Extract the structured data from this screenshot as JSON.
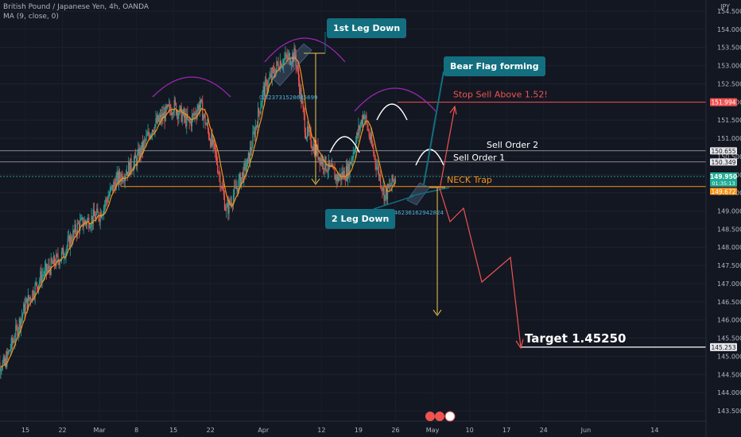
{
  "header": {
    "title": "British Pound / Japanese Yen, 4h, OANDA",
    "ma_label": "MA (9, close, 0)",
    "currency": "JPY"
  },
  "colors": {
    "background": "#131722",
    "bull": "#26a69a",
    "bear": "#ef5350",
    "ma": "#f7931a",
    "annotation_box": "#136f7f",
    "arc": "#9c27b0",
    "stop_line": "#ef5350",
    "neck_line": "#f7931a",
    "target_line": "#ffffff",
    "current_price_label": "#22ab94"
  },
  "chart_data": {
    "type": "candlestick",
    "title": "British Pound / Japanese Yen, 4h, OANDA",
    "ylim": [
      143.3,
      154.75
    ],
    "y_ticks": [
      "143.500",
      "144.000",
      "144.500",
      "145.000",
      "145.500",
      "146.000",
      "146.500",
      "147.000",
      "147.500",
      "148.000",
      "148.500",
      "149.000",
      "149.500",
      "150.000",
      "150.500",
      "151.000",
      "151.500",
      "152.000",
      "152.500",
      "153.000",
      "153.500",
      "154.000",
      "154.500"
    ],
    "x_ticks": [
      "15",
      "22",
      "Mar",
      "8",
      "15",
      "22",
      "Apr",
      "12",
      "19",
      "26",
      "May",
      "10",
      "17",
      "24",
      "Jun",
      "14"
    ],
    "price_path": [
      {
        "date": "Feb 9",
        "price": 144.85
      },
      {
        "date": "Feb 11",
        "price": 144.75
      },
      {
        "date": "Feb 15",
        "price": 146.4
      },
      {
        "date": "Feb 18",
        "price": 147.2
      },
      {
        "date": "Feb 22",
        "price": 147.8
      },
      {
        "date": "Feb 25",
        "price": 148.6
      },
      {
        "date": "Mar 1",
        "price": 148.9
      },
      {
        "date": "Mar 4",
        "price": 149.8
      },
      {
        "date": "Mar 8",
        "price": 150.4
      },
      {
        "date": "Mar 11",
        "price": 151.3
      },
      {
        "date": "Mar 15",
        "price": 151.9
      },
      {
        "date": "Mar 18",
        "price": 151.4
      },
      {
        "date": "Mar 20",
        "price": 151.95
      },
      {
        "date": "Mar 23",
        "price": 150.5
      },
      {
        "date": "Mar 25",
        "price": 149.0
      },
      {
        "date": "Mar 29",
        "price": 150.3
      },
      {
        "date": "Apr 1",
        "price": 152.3
      },
      {
        "date": "Apr 4",
        "price": 153.1
      },
      {
        "date": "Apr 7",
        "price": 153.3
      },
      {
        "date": "Apr 9",
        "price": 151.2
      },
      {
        "date": "Apr 12",
        "price": 150.4
      },
      {
        "date": "Apr 15",
        "price": 149.9
      },
      {
        "date": "Apr 17",
        "price": 150.1
      },
      {
        "date": "Apr 19",
        "price": 151.2
      },
      {
        "date": "Apr 20",
        "price": 151.7
      },
      {
        "date": "Apr 22",
        "price": 150.5
      },
      {
        "date": "Apr 24",
        "price": 149.4
      },
      {
        "date": "Apr 26",
        "price": 149.95
      }
    ],
    "projection": [
      {
        "date": "Apr 27",
        "price": 150.0
      },
      {
        "date": "Apr 29",
        "price": 148.8
      },
      {
        "date": "May 6",
        "price": 147.0
      },
      {
        "date": "May 11",
        "price": 147.7
      },
      {
        "date": "May 15",
        "price": 145.25
      }
    ],
    "moving_average": {
      "label": "MA (9, close, 0)"
    },
    "levels": [
      {
        "label": "Stop Sell Above 1.52!",
        "price": 151.994
      },
      {
        "label": "Sell Order 2",
        "price": 150.655
      },
      {
        "label": "Sell Order 1",
        "price": 150.349
      },
      {
        "label": "NECK Trap",
        "price": 149.672
      },
      {
        "label": "Target 1.45250",
        "price": 145.253
      }
    ],
    "current_price": {
      "price": "149.950",
      "countdown": "01:35:13",
      "bid": "149.672"
    },
    "price_labels": [
      "151.994",
      "150.655",
      "150.349",
      "149.950",
      "149.672",
      "145.253"
    ],
    "annotations": {
      "first_leg": "1st Leg Down",
      "second_leg": "2 Leg Down",
      "bear_flag": "Bear Flag forming",
      "fib_1": "0.823731528685699",
      "fib_2": "0.5446236162942824"
    }
  }
}
